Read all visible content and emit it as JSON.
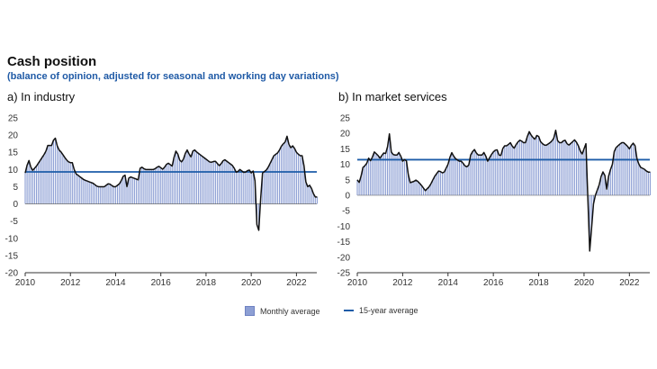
{
  "header": {
    "title": "Cash position",
    "subtitle": "(balance of opinion, adjusted for seasonal and working day variations)"
  },
  "legend": {
    "monthly": "Monthly average",
    "avg": "15-year average"
  },
  "colors": {
    "bar": "#8d9fd4",
    "line": "#111111",
    "avg": "#1d5ca8"
  },
  "chart_data": [
    {
      "type": "bar",
      "title": "a) In industry",
      "ylim": [
        -20,
        25
      ],
      "yticks": [
        -20,
        -15,
        -10,
        -5,
        0,
        5,
        10,
        15,
        20,
        25
      ],
      "xlim": [
        2010,
        2022.9
      ],
      "xticks": [
        2010,
        2012,
        2014,
        2016,
        2018,
        2020,
        2022
      ],
      "avg": 9.3,
      "anchors": [
        [
          2010.0,
          9
        ],
        [
          2010.15,
          13
        ],
        [
          2010.3,
          9.5
        ],
        [
          2010.5,
          11
        ],
        [
          2010.7,
          13
        ],
        [
          2010.9,
          15
        ],
        [
          2011.0,
          17
        ],
        [
          2011.2,
          17
        ],
        [
          2011.3,
          20
        ],
        [
          2011.45,
          16
        ],
        [
          2011.6,
          15
        ],
        [
          2011.8,
          13
        ],
        [
          2011.95,
          12
        ],
        [
          2012.1,
          12
        ],
        [
          2012.2,
          9
        ],
        [
          2012.4,
          8
        ],
        [
          2012.6,
          7
        ],
        [
          2012.8,
          6.5
        ],
        [
          2013.0,
          6
        ],
        [
          2013.2,
          5
        ],
        [
          2013.5,
          5
        ],
        [
          2013.7,
          6
        ],
        [
          2013.9,
          5
        ],
        [
          2014.0,
          5
        ],
        [
          2014.2,
          6
        ],
        [
          2014.4,
          9
        ],
        [
          2014.5,
          5
        ],
        [
          2014.6,
          8
        ],
        [
          2014.8,
          7.5
        ],
        [
          2015.0,
          7
        ],
        [
          2015.1,
          11
        ],
        [
          2015.3,
          10
        ],
        [
          2015.5,
          10
        ],
        [
          2015.7,
          10
        ],
        [
          2015.9,
          11
        ],
        [
          2016.1,
          10
        ],
        [
          2016.3,
          12
        ],
        [
          2016.5,
          11
        ],
        [
          2016.6,
          14
        ],
        [
          2016.7,
          16
        ],
        [
          2016.8,
          13
        ],
        [
          2016.95,
          12
        ],
        [
          2017.1,
          15
        ],
        [
          2017.2,
          16
        ],
        [
          2017.3,
          13
        ],
        [
          2017.45,
          16
        ],
        [
          2017.6,
          15
        ],
        [
          2017.8,
          14
        ],
        [
          2018.0,
          13
        ],
        [
          2018.2,
          12
        ],
        [
          2018.4,
          12.5
        ],
        [
          2018.6,
          11
        ],
        [
          2018.8,
          13
        ],
        [
          2019.0,
          12
        ],
        [
          2019.2,
          11
        ],
        [
          2019.35,
          9
        ],
        [
          2019.5,
          10
        ],
        [
          2019.7,
          9
        ],
        [
          2019.9,
          10
        ],
        [
          2020.0,
          9
        ],
        [
          2020.15,
          10
        ],
        [
          2020.2,
          0
        ],
        [
          2020.25,
          -6
        ],
        [
          2020.35,
          -8
        ],
        [
          2020.42,
          2
        ],
        [
          2020.5,
          9
        ],
        [
          2020.7,
          10
        ],
        [
          2020.85,
          12
        ],
        [
          2021.0,
          14
        ],
        [
          2021.2,
          15
        ],
        [
          2021.35,
          17
        ],
        [
          2021.5,
          18
        ],
        [
          2021.6,
          20
        ],
        [
          2021.7,
          16
        ],
        [
          2021.85,
          17
        ],
        [
          2022.0,
          15
        ],
        [
          2022.15,
          14
        ],
        [
          2022.3,
          14
        ],
        [
          2022.38,
          7
        ],
        [
          2022.5,
          5
        ],
        [
          2022.6,
          5.5
        ],
        [
          2022.7,
          4
        ],
        [
          2022.8,
          2
        ]
      ]
    },
    {
      "type": "bar",
      "title": "b) In market services",
      "ylim": [
        -25,
        25
      ],
      "yticks": [
        -25,
        -20,
        -15,
        -10,
        -5,
        0,
        5,
        10,
        15,
        20,
        25
      ],
      "xlim": [
        2010,
        2022.9
      ],
      "xticks": [
        2010,
        2012,
        2014,
        2016,
        2018,
        2020,
        2022
      ],
      "avg": 11.5,
      "anchors": [
        [
          2010.0,
          5
        ],
        [
          2010.1,
          4
        ],
        [
          2010.25,
          9
        ],
        [
          2010.4,
          10
        ],
        [
          2010.5,
          12
        ],
        [
          2010.6,
          11
        ],
        [
          2010.75,
          14
        ],
        [
          2010.9,
          13
        ],
        [
          2011.0,
          12
        ],
        [
          2011.2,
          14
        ],
        [
          2011.3,
          13
        ],
        [
          2011.4,
          21
        ],
        [
          2011.5,
          14
        ],
        [
          2011.6,
          13
        ],
        [
          2011.75,
          13
        ],
        [
          2011.85,
          14
        ],
        [
          2012.0,
          11
        ],
        [
          2012.15,
          12
        ],
        [
          2012.3,
          4
        ],
        [
          2012.5,
          4.5
        ],
        [
          2012.6,
          5
        ],
        [
          2012.8,
          3.5
        ],
        [
          2013.0,
          1.5
        ],
        [
          2013.2,
          3
        ],
        [
          2013.4,
          6
        ],
        [
          2013.6,
          8
        ],
        [
          2013.8,
          7
        ],
        [
          2014.0,
          10
        ],
        [
          2014.15,
          14
        ],
        [
          2014.3,
          12
        ],
        [
          2014.5,
          11
        ],
        [
          2014.6,
          11
        ],
        [
          2014.8,
          9
        ],
        [
          2014.95,
          10
        ],
        [
          2015.0,
          13
        ],
        [
          2015.15,
          15
        ],
        [
          2015.3,
          13
        ],
        [
          2015.5,
          13
        ],
        [
          2015.6,
          14
        ],
        [
          2015.75,
          11
        ],
        [
          2015.9,
          13
        ],
        [
          2016.0,
          14
        ],
        [
          2016.15,
          15
        ],
        [
          2016.3,
          12
        ],
        [
          2016.45,
          16
        ],
        [
          2016.6,
          16
        ],
        [
          2016.75,
          17
        ],
        [
          2016.9,
          15
        ],
        [
          2017.05,
          17
        ],
        [
          2017.2,
          18
        ],
        [
          2017.3,
          17
        ],
        [
          2017.45,
          17
        ],
        [
          2017.55,
          21
        ],
        [
          2017.7,
          19
        ],
        [
          2017.85,
          18
        ],
        [
          2017.95,
          20
        ],
        [
          2018.1,
          17
        ],
        [
          2018.3,
          16
        ],
        [
          2018.5,
          17
        ],
        [
          2018.65,
          18
        ],
        [
          2018.75,
          21
        ],
        [
          2018.85,
          17
        ],
        [
          2019.0,
          17
        ],
        [
          2019.15,
          18
        ],
        [
          2019.3,
          16
        ],
        [
          2019.45,
          17
        ],
        [
          2019.6,
          18
        ],
        [
          2019.75,
          16
        ],
        [
          2019.9,
          13
        ],
        [
          2020.0,
          15
        ],
        [
          2020.1,
          17
        ],
        [
          2020.15,
          4
        ],
        [
          2020.2,
          -10
        ],
        [
          2020.25,
          -18
        ],
        [
          2020.3,
          -21.5
        ],
        [
          2020.35,
          -5
        ],
        [
          2020.5,
          0
        ],
        [
          2020.6,
          2
        ],
        [
          2020.7,
          4
        ],
        [
          2020.8,
          8
        ],
        [
          2020.95,
          6
        ],
        [
          2021.0,
          2
        ],
        [
          2021.1,
          7
        ],
        [
          2021.25,
          10
        ],
        [
          2021.35,
          15
        ],
        [
          2021.5,
          16
        ],
        [
          2021.65,
          17
        ],
        [
          2021.75,
          17
        ],
        [
          2021.9,
          16
        ],
        [
          2022.0,
          15
        ],
        [
          2022.15,
          17
        ],
        [
          2022.25,
          16
        ],
        [
          2022.35,
          11
        ],
        [
          2022.5,
          9
        ],
        [
          2022.65,
          8.5
        ],
        [
          2022.8,
          7.5
        ]
      ]
    }
  ]
}
